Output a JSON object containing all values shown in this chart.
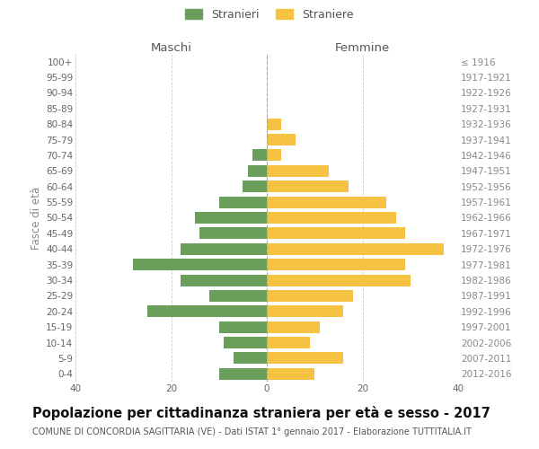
{
  "age_groups": [
    "0-4",
    "5-9",
    "10-14",
    "15-19",
    "20-24",
    "25-29",
    "30-34",
    "35-39",
    "40-44",
    "45-49",
    "50-54",
    "55-59",
    "60-64",
    "65-69",
    "70-74",
    "75-79",
    "80-84",
    "85-89",
    "90-94",
    "95-99",
    "100+"
  ],
  "birth_years": [
    "2012-2016",
    "2007-2011",
    "2002-2006",
    "1997-2001",
    "1992-1996",
    "1987-1991",
    "1982-1986",
    "1977-1981",
    "1972-1976",
    "1967-1971",
    "1962-1966",
    "1957-1961",
    "1952-1956",
    "1947-1951",
    "1942-1946",
    "1937-1941",
    "1932-1936",
    "1927-1931",
    "1922-1926",
    "1917-1921",
    "≤ 1916"
  ],
  "males": [
    10,
    7,
    9,
    10,
    25,
    12,
    18,
    28,
    18,
    14,
    15,
    10,
    5,
    4,
    3,
    0,
    0,
    0,
    0,
    0,
    0
  ],
  "females": [
    10,
    16,
    9,
    11,
    16,
    18,
    30,
    29,
    37,
    29,
    27,
    25,
    17,
    13,
    3,
    6,
    3,
    0,
    0,
    0,
    0
  ],
  "male_color": "#6a9e5b",
  "female_color": "#f5c242",
  "male_label": "Stranieri",
  "female_label": "Straniere",
  "xlim": 40,
  "title": "Popolazione per cittadinanza straniera per età e sesso - 2017",
  "subtitle": "COMUNE DI CONCORDIA SAGITTARIA (VE) - Dati ISTAT 1° gennaio 2017 - Elaborazione TUTTITALIA.IT",
  "ylabel_left": "Fasce di età",
  "header_left": "Maschi",
  "header_right": "Femmine",
  "bg_color": "#ffffff",
  "grid_color": "#cccccc",
  "bar_height": 0.75,
  "title_fontsize": 10.5,
  "subtitle_fontsize": 7,
  "tick_fontsize": 7.5,
  "label_fontsize": 8.5,
  "header_fontsize": 9.5,
  "legend_fontsize": 9
}
